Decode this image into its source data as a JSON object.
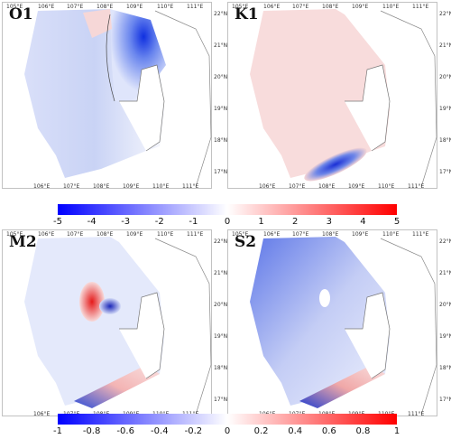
{
  "panels": [
    {
      "key": "O1",
      "label": "O1"
    },
    {
      "key": "K1",
      "label": "K1"
    },
    {
      "key": "M2",
      "label": "M2"
    },
    {
      "key": "S2",
      "label": "S2"
    }
  ],
  "top_lon_ticks": [
    "105°E",
    "106°E",
    "107°E",
    "108°E",
    "109°E",
    "110°E",
    "111°E"
  ],
  "bottom_lon_ticks": [
    "106°E",
    "107°E",
    "108°E",
    "109°E",
    "110°E",
    "111°E"
  ],
  "lat_ticks": [
    "22°N",
    "21°N",
    "20°N",
    "19°N",
    "18°N",
    "17°N"
  ],
  "colorbar_top": {
    "ticks": [
      "-5",
      "-4",
      "-3",
      "-2",
      "-1",
      "0",
      "1",
      "2",
      "3",
      "4",
      "5"
    ],
    "min": -5,
    "max": 5
  },
  "colorbar_bottom": {
    "ticks": [
      "-1",
      "-0.8",
      "-0.6",
      "-0.4",
      "-0.2",
      "0",
      "0.2",
      "0.4",
      "0.6",
      "0.8",
      "1"
    ],
    "min": -1,
    "max": 1
  },
  "colors": {
    "negative": "#0000ff",
    "zero": "#ffffff",
    "positive": "#ff0000",
    "land_line": "#777777"
  }
}
